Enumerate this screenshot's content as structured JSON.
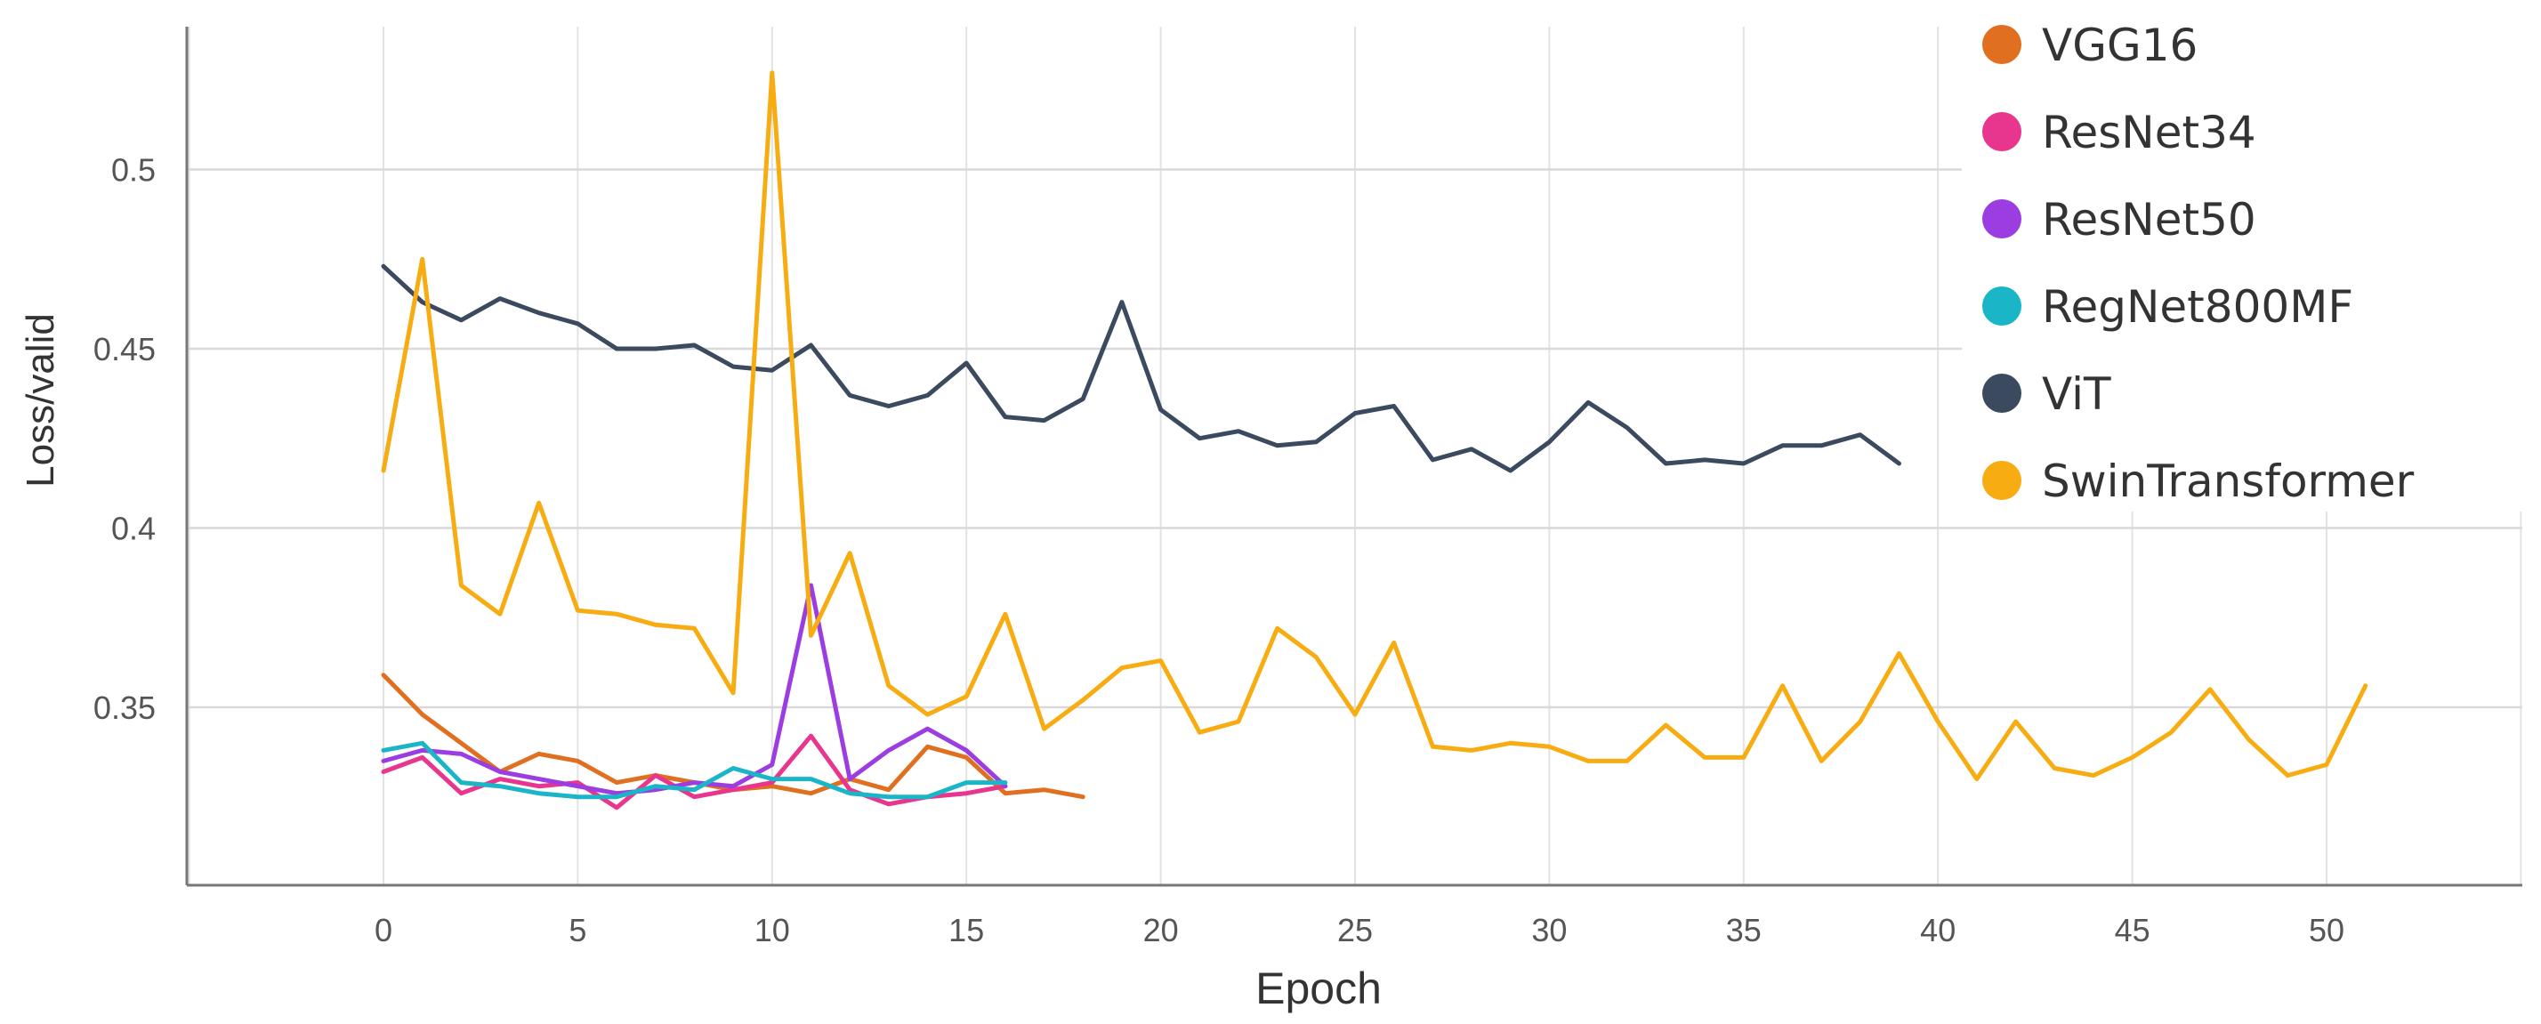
{
  "chart_data": {
    "type": "line",
    "title": "",
    "xlabel": "Epoch",
    "ylabel": "Loss/valid",
    "xlim": [
      -5,
      55
    ],
    "ylim": [
      0.3,
      0.535
    ],
    "x_ticks": [
      0,
      5,
      10,
      15,
      20,
      25,
      30,
      35,
      40,
      45,
      50
    ],
    "y_ticks": [
      0.35,
      0.4,
      0.45,
      0.5
    ],
    "x_tick_labels": [
      "0",
      "5",
      "10",
      "15",
      "20",
      "25",
      "30",
      "35",
      "40",
      "45",
      "50"
    ],
    "y_tick_labels": [
      "0.35",
      "0.4",
      "0.45",
      "0.5"
    ],
    "grid": true,
    "legend": {
      "placement": "top-right"
    },
    "series": [
      {
        "name": "VGG16",
        "color": "#e07020",
        "values": [
          0.359,
          0.348,
          0.34,
          0.332,
          0.337,
          0.335,
          0.329,
          0.331,
          0.329,
          0.327,
          0.328,
          0.326,
          0.33,
          0.327,
          0.339,
          0.336,
          0.326,
          0.327,
          0.325
        ]
      },
      {
        "name": "ResNet34",
        "color": "#e8358e",
        "values": [
          0.332,
          0.336,
          0.326,
          0.33,
          0.328,
          0.329,
          0.322,
          0.331,
          0.325,
          0.327,
          0.329,
          0.342,
          0.327,
          0.323,
          0.325,
          0.326,
          0.328
        ]
      },
      {
        "name": "ResNet50",
        "color": "#9b3de0",
        "values": [
          0.335,
          0.338,
          0.337,
          0.332,
          0.33,
          0.328,
          0.326,
          0.327,
          0.329,
          0.328,
          0.334,
          0.384,
          0.33,
          0.338,
          0.344,
          0.338,
          0.328
        ]
      },
      {
        "name": "RegNet800MF",
        "color": "#1ab6c8",
        "values": [
          0.338,
          0.34,
          0.329,
          0.328,
          0.326,
          0.325,
          0.325,
          0.328,
          0.327,
          0.333,
          0.33,
          0.33,
          0.326,
          0.325,
          0.325,
          0.329,
          0.329
        ]
      },
      {
        "name": "ViT",
        "color": "#3b4a5e",
        "values": [
          0.473,
          0.463,
          0.458,
          0.464,
          0.46,
          0.457,
          0.45,
          0.45,
          0.451,
          0.445,
          0.444,
          0.451,
          0.437,
          0.434,
          0.437,
          0.446,
          0.431,
          0.43,
          0.436,
          0.463,
          0.433,
          0.425,
          0.427,
          0.423,
          0.424,
          0.432,
          0.434,
          0.419,
          0.422,
          0.416,
          0.424,
          0.435,
          0.428,
          0.418,
          0.419,
          0.418,
          0.423,
          0.423,
          0.426,
          0.418
        ]
      },
      {
        "name": "SwinTransformer",
        "color": "#f7ac12",
        "values": [
          0.416,
          0.475,
          0.384,
          0.376,
          0.407,
          0.377,
          0.376,
          0.373,
          0.372,
          0.354,
          0.527,
          0.37,
          0.393,
          0.356,
          0.348,
          0.353,
          0.376,
          0.344,
          0.352,
          0.361,
          0.363,
          0.343,
          0.346,
          0.372,
          0.364,
          0.348,
          0.368,
          0.339,
          0.338,
          0.34,
          0.339,
          0.335,
          0.335,
          0.345,
          0.336,
          0.336,
          0.356,
          0.335,
          0.346,
          0.365,
          0.346,
          0.33,
          0.346,
          0.333,
          0.331,
          0.336,
          0.343,
          0.355,
          0.341,
          0.331,
          0.334,
          0.356
        ]
      }
    ]
  }
}
